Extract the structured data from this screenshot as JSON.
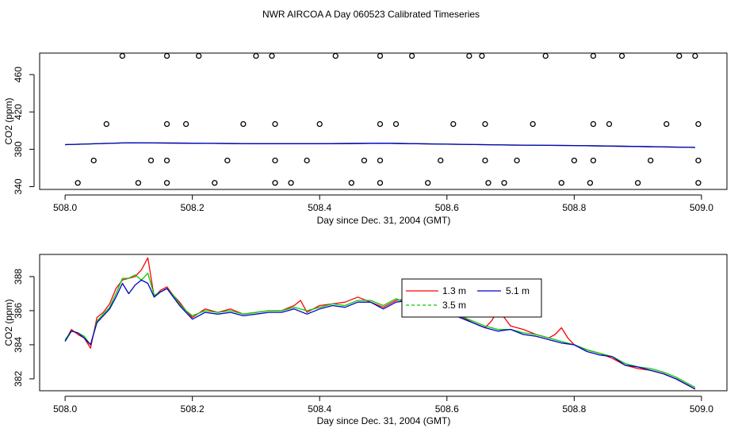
{
  "page": {
    "title": "NWR AIRCOA A  Day 060523  Calibrated Timeseries"
  },
  "chart_data": [
    {
      "type": "scatter",
      "xlabel": "Day since Dec. 31, 2004 (GMT)",
      "ylabel": "CO2 (ppm)",
      "xlim": [
        507.96,
        509.04
      ],
      "ylim": [
        337,
        483
      ],
      "xticks": [
        508.0,
        508.2,
        508.4,
        508.6,
        508.8,
        509.0
      ],
      "xtick_labels": [
        "508.0",
        "508.2",
        "508.4",
        "508.6",
        "508.8",
        "509.0"
      ],
      "yticks": [
        340,
        380,
        420,
        460
      ],
      "ytick_labels": [
        "340",
        "380",
        "420",
        "460"
      ],
      "grid": false,
      "series": [
        {
          "marker": "open-circle",
          "color": "#000000",
          "points": [
            [
              508.09,
              480
            ],
            [
              508.16,
              480
            ],
            [
              508.21,
              480
            ],
            [
              508.3,
              480
            ],
            [
              508.325,
              480
            ],
            [
              508.425,
              480
            ],
            [
              508.495,
              480
            ],
            [
              508.545,
              480
            ],
            [
              508.635,
              480
            ],
            [
              508.655,
              480
            ],
            [
              508.755,
              480
            ],
            [
              508.83,
              480
            ],
            [
              508.875,
              480
            ],
            [
              508.965,
              480
            ],
            [
              508.99,
              480
            ],
            [
              508.065,
              407
            ],
            [
              508.16,
              407
            ],
            [
              508.19,
              407
            ],
            [
              508.28,
              407
            ],
            [
              508.33,
              407
            ],
            [
              508.4,
              407
            ],
            [
              508.495,
              407
            ],
            [
              508.52,
              407
            ],
            [
              508.61,
              407
            ],
            [
              508.66,
              407
            ],
            [
              508.735,
              407
            ],
            [
              508.83,
              407
            ],
            [
              508.855,
              407
            ],
            [
              508.945,
              407
            ],
            [
              508.995,
              407
            ],
            [
              508.045,
              368
            ],
            [
              508.135,
              368
            ],
            [
              508.16,
              368
            ],
            [
              508.255,
              368
            ],
            [
              508.33,
              368
            ],
            [
              508.38,
              368
            ],
            [
              508.47,
              368
            ],
            [
              508.495,
              368
            ],
            [
              508.59,
              368
            ],
            [
              508.66,
              368
            ],
            [
              508.71,
              368
            ],
            [
              508.8,
              368
            ],
            [
              508.83,
              368
            ],
            [
              508.92,
              368
            ],
            [
              508.995,
              368
            ],
            [
              508.02,
              344
            ],
            [
              508.115,
              344
            ],
            [
              508.16,
              344
            ],
            [
              508.235,
              344
            ],
            [
              508.33,
              344
            ],
            [
              508.355,
              344
            ],
            [
              508.45,
              344
            ],
            [
              508.495,
              344
            ],
            [
              508.57,
              344
            ],
            [
              508.665,
              344
            ],
            [
              508.69,
              344
            ],
            [
              508.78,
              344
            ],
            [
              508.825,
              344
            ],
            [
              508.9,
              344
            ],
            [
              508.995,
              344
            ]
          ]
        },
        {
          "name": "1.3 m",
          "color": "#ff0000",
          "x": [
            508.0,
            508.1,
            508.2,
            508.3,
            508.4,
            508.5,
            508.6,
            508.7,
            508.8,
            508.9,
            508.99
          ],
          "values": [
            385,
            387,
            386.5,
            386,
            386,
            386.5,
            385.5,
            384.5,
            384,
            383,
            382
          ]
        },
        {
          "name": "3.5 m",
          "color": "#00cc00",
          "x": [
            508.0,
            508.1,
            508.2,
            508.3,
            508.4,
            508.5,
            508.6,
            508.7,
            508.8,
            508.9,
            508.99
          ],
          "values": [
            385,
            387,
            386.5,
            386,
            386,
            386.5,
            385.5,
            384.5,
            384,
            383,
            382
          ]
        },
        {
          "name": "5.1 m",
          "color": "#0000cc",
          "x": [
            508.0,
            508.1,
            508.2,
            508.3,
            508.4,
            508.5,
            508.6,
            508.7,
            508.8,
            508.9,
            508.99
          ],
          "values": [
            385,
            387,
            386.5,
            386,
            386,
            386.5,
            385.5,
            384.5,
            384,
            383,
            382
          ]
        }
      ]
    },
    {
      "type": "line",
      "xlabel": "Day since Dec. 31, 2004 (GMT)",
      "ylabel": "CO2 (ppm)",
      "xlim": [
        507.96,
        509.04
      ],
      "ylim": [
        381.3,
        389.3
      ],
      "xticks": [
        508.0,
        508.2,
        508.4,
        508.6,
        508.8,
        509.0
      ],
      "xtick_labels": [
        "508.0",
        "508.2",
        "508.4",
        "508.6",
        "508.8",
        "509.0"
      ],
      "yticks": [
        382,
        384,
        386,
        388
      ],
      "ytick_labels": [
        "382",
        "384",
        "386",
        "388"
      ],
      "grid": false,
      "legend": {
        "placement": "top-right-center",
        "entries": [
          {
            "label": "1.3 m",
            "color": "#ff0000",
            "style": "solid"
          },
          {
            "label": "3.5 m",
            "color": "#00cc00",
            "style": "dashed"
          },
          {
            "label": "5.1 m",
            "color": "#0000cc",
            "style": "solid"
          }
        ]
      },
      "series": [
        {
          "name": "1.3 m",
          "color": "#ff0000",
          "x": [
            508.0,
            508.01,
            508.02,
            508.03,
            508.04,
            508.05,
            508.06,
            508.07,
            508.08,
            508.09,
            508.1,
            508.11,
            508.12,
            508.13,
            508.14,
            508.15,
            508.16,
            508.17,
            508.18,
            508.19,
            508.2,
            508.22,
            508.24,
            508.26,
            508.28,
            508.3,
            508.32,
            508.34,
            508.36,
            508.37,
            508.38,
            508.4,
            508.42,
            508.44,
            508.46,
            508.48,
            508.5,
            508.52,
            508.54,
            508.56,
            508.58,
            508.6,
            508.62,
            508.64,
            508.66,
            508.67,
            508.68,
            508.69,
            508.7,
            508.72,
            508.74,
            508.76,
            508.77,
            508.78,
            508.79,
            508.8,
            508.82,
            508.84,
            508.86,
            508.88,
            508.9,
            508.92,
            508.94,
            508.96,
            508.98,
            508.99
          ],
          "values": [
            384.2,
            384.9,
            384.6,
            384.4,
            383.8,
            385.6,
            385.9,
            386.4,
            387.3,
            387.8,
            387.9,
            388.0,
            388.4,
            389.1,
            386.8,
            387.2,
            387.4,
            386.9,
            386.5,
            386.0,
            385.6,
            386.1,
            385.9,
            386.1,
            385.8,
            385.9,
            386.0,
            386.0,
            386.3,
            386.6,
            385.9,
            386.3,
            386.4,
            386.5,
            386.8,
            386.5,
            386.2,
            386.6,
            386.7,
            386.8,
            386.5,
            386.2,
            385.7,
            385.3,
            385.0,
            385.4,
            386.0,
            385.6,
            385.1,
            384.9,
            384.6,
            384.4,
            384.6,
            385.0,
            384.4,
            384.0,
            383.7,
            383.5,
            383.2,
            382.8,
            382.6,
            382.5,
            382.3,
            382.0,
            381.6,
            381.4
          ]
        },
        {
          "name": "3.5 m",
          "color": "#00cc00",
          "x": [
            508.0,
            508.01,
            508.02,
            508.03,
            508.04,
            508.05,
            508.06,
            508.07,
            508.08,
            508.09,
            508.1,
            508.11,
            508.12,
            508.13,
            508.14,
            508.15,
            508.16,
            508.17,
            508.18,
            508.19,
            508.2,
            508.22,
            508.24,
            508.26,
            508.28,
            508.3,
            508.32,
            508.34,
            508.36,
            508.38,
            508.4,
            508.42,
            508.44,
            508.46,
            508.48,
            508.5,
            508.52,
            508.54,
            508.56,
            508.58,
            508.6,
            508.62,
            508.64,
            508.66,
            508.68,
            508.7,
            508.72,
            508.74,
            508.76,
            508.78,
            508.8,
            508.82,
            508.84,
            508.86,
            508.88,
            508.9,
            508.92,
            508.94,
            508.96,
            508.98,
            508.99
          ],
          "values": [
            384.3,
            384.8,
            384.7,
            384.5,
            384.0,
            385.4,
            385.8,
            386.2,
            387.0,
            387.9,
            387.9,
            388.1,
            387.8,
            388.2,
            386.9,
            387.1,
            387.3,
            386.9,
            386.4,
            386.0,
            385.7,
            386.0,
            385.9,
            386.0,
            385.8,
            385.9,
            386.0,
            386.0,
            386.2,
            386.0,
            386.2,
            386.4,
            386.3,
            386.6,
            386.6,
            386.3,
            386.7,
            386.4,
            386.6,
            386.4,
            386.0,
            385.7,
            385.4,
            385.1,
            384.9,
            384.9,
            384.7,
            384.6,
            384.4,
            384.2,
            384.0,
            383.7,
            383.5,
            383.3,
            382.9,
            382.7,
            382.6,
            382.4,
            382.1,
            381.7,
            381.5
          ]
        },
        {
          "name": "5.1 m",
          "color": "#0000cc",
          "x": [
            508.0,
            508.01,
            508.02,
            508.03,
            508.04,
            508.05,
            508.06,
            508.07,
            508.08,
            508.09,
            508.1,
            508.11,
            508.12,
            508.13,
            508.14,
            508.15,
            508.16,
            508.17,
            508.18,
            508.19,
            508.2,
            508.22,
            508.24,
            508.26,
            508.28,
            508.3,
            508.32,
            508.34,
            508.36,
            508.38,
            508.4,
            508.42,
            508.44,
            508.46,
            508.48,
            508.5,
            508.52,
            508.54,
            508.56,
            508.58,
            508.6,
            508.62,
            508.64,
            508.66,
            508.68,
            508.7,
            508.72,
            508.74,
            508.76,
            508.78,
            508.8,
            508.82,
            508.84,
            508.86,
            508.88,
            508.9,
            508.92,
            508.94,
            508.96,
            508.98,
            508.99
          ],
          "values": [
            384.2,
            384.8,
            384.7,
            384.4,
            384.0,
            385.3,
            385.7,
            386.1,
            386.8,
            387.6,
            387.0,
            387.5,
            387.8,
            387.6,
            386.8,
            387.1,
            387.3,
            386.8,
            386.3,
            385.9,
            385.5,
            385.9,
            385.8,
            385.9,
            385.7,
            385.8,
            385.9,
            385.9,
            386.1,
            385.8,
            386.1,
            386.3,
            386.2,
            386.5,
            386.5,
            386.1,
            386.5,
            386.6,
            386.9,
            386.2,
            386.0,
            385.6,
            385.3,
            385.0,
            384.8,
            384.9,
            384.6,
            384.5,
            384.3,
            384.1,
            384.0,
            383.6,
            383.4,
            383.3,
            382.8,
            382.7,
            382.5,
            382.3,
            382.0,
            381.6,
            381.4
          ]
        }
      ]
    }
  ]
}
